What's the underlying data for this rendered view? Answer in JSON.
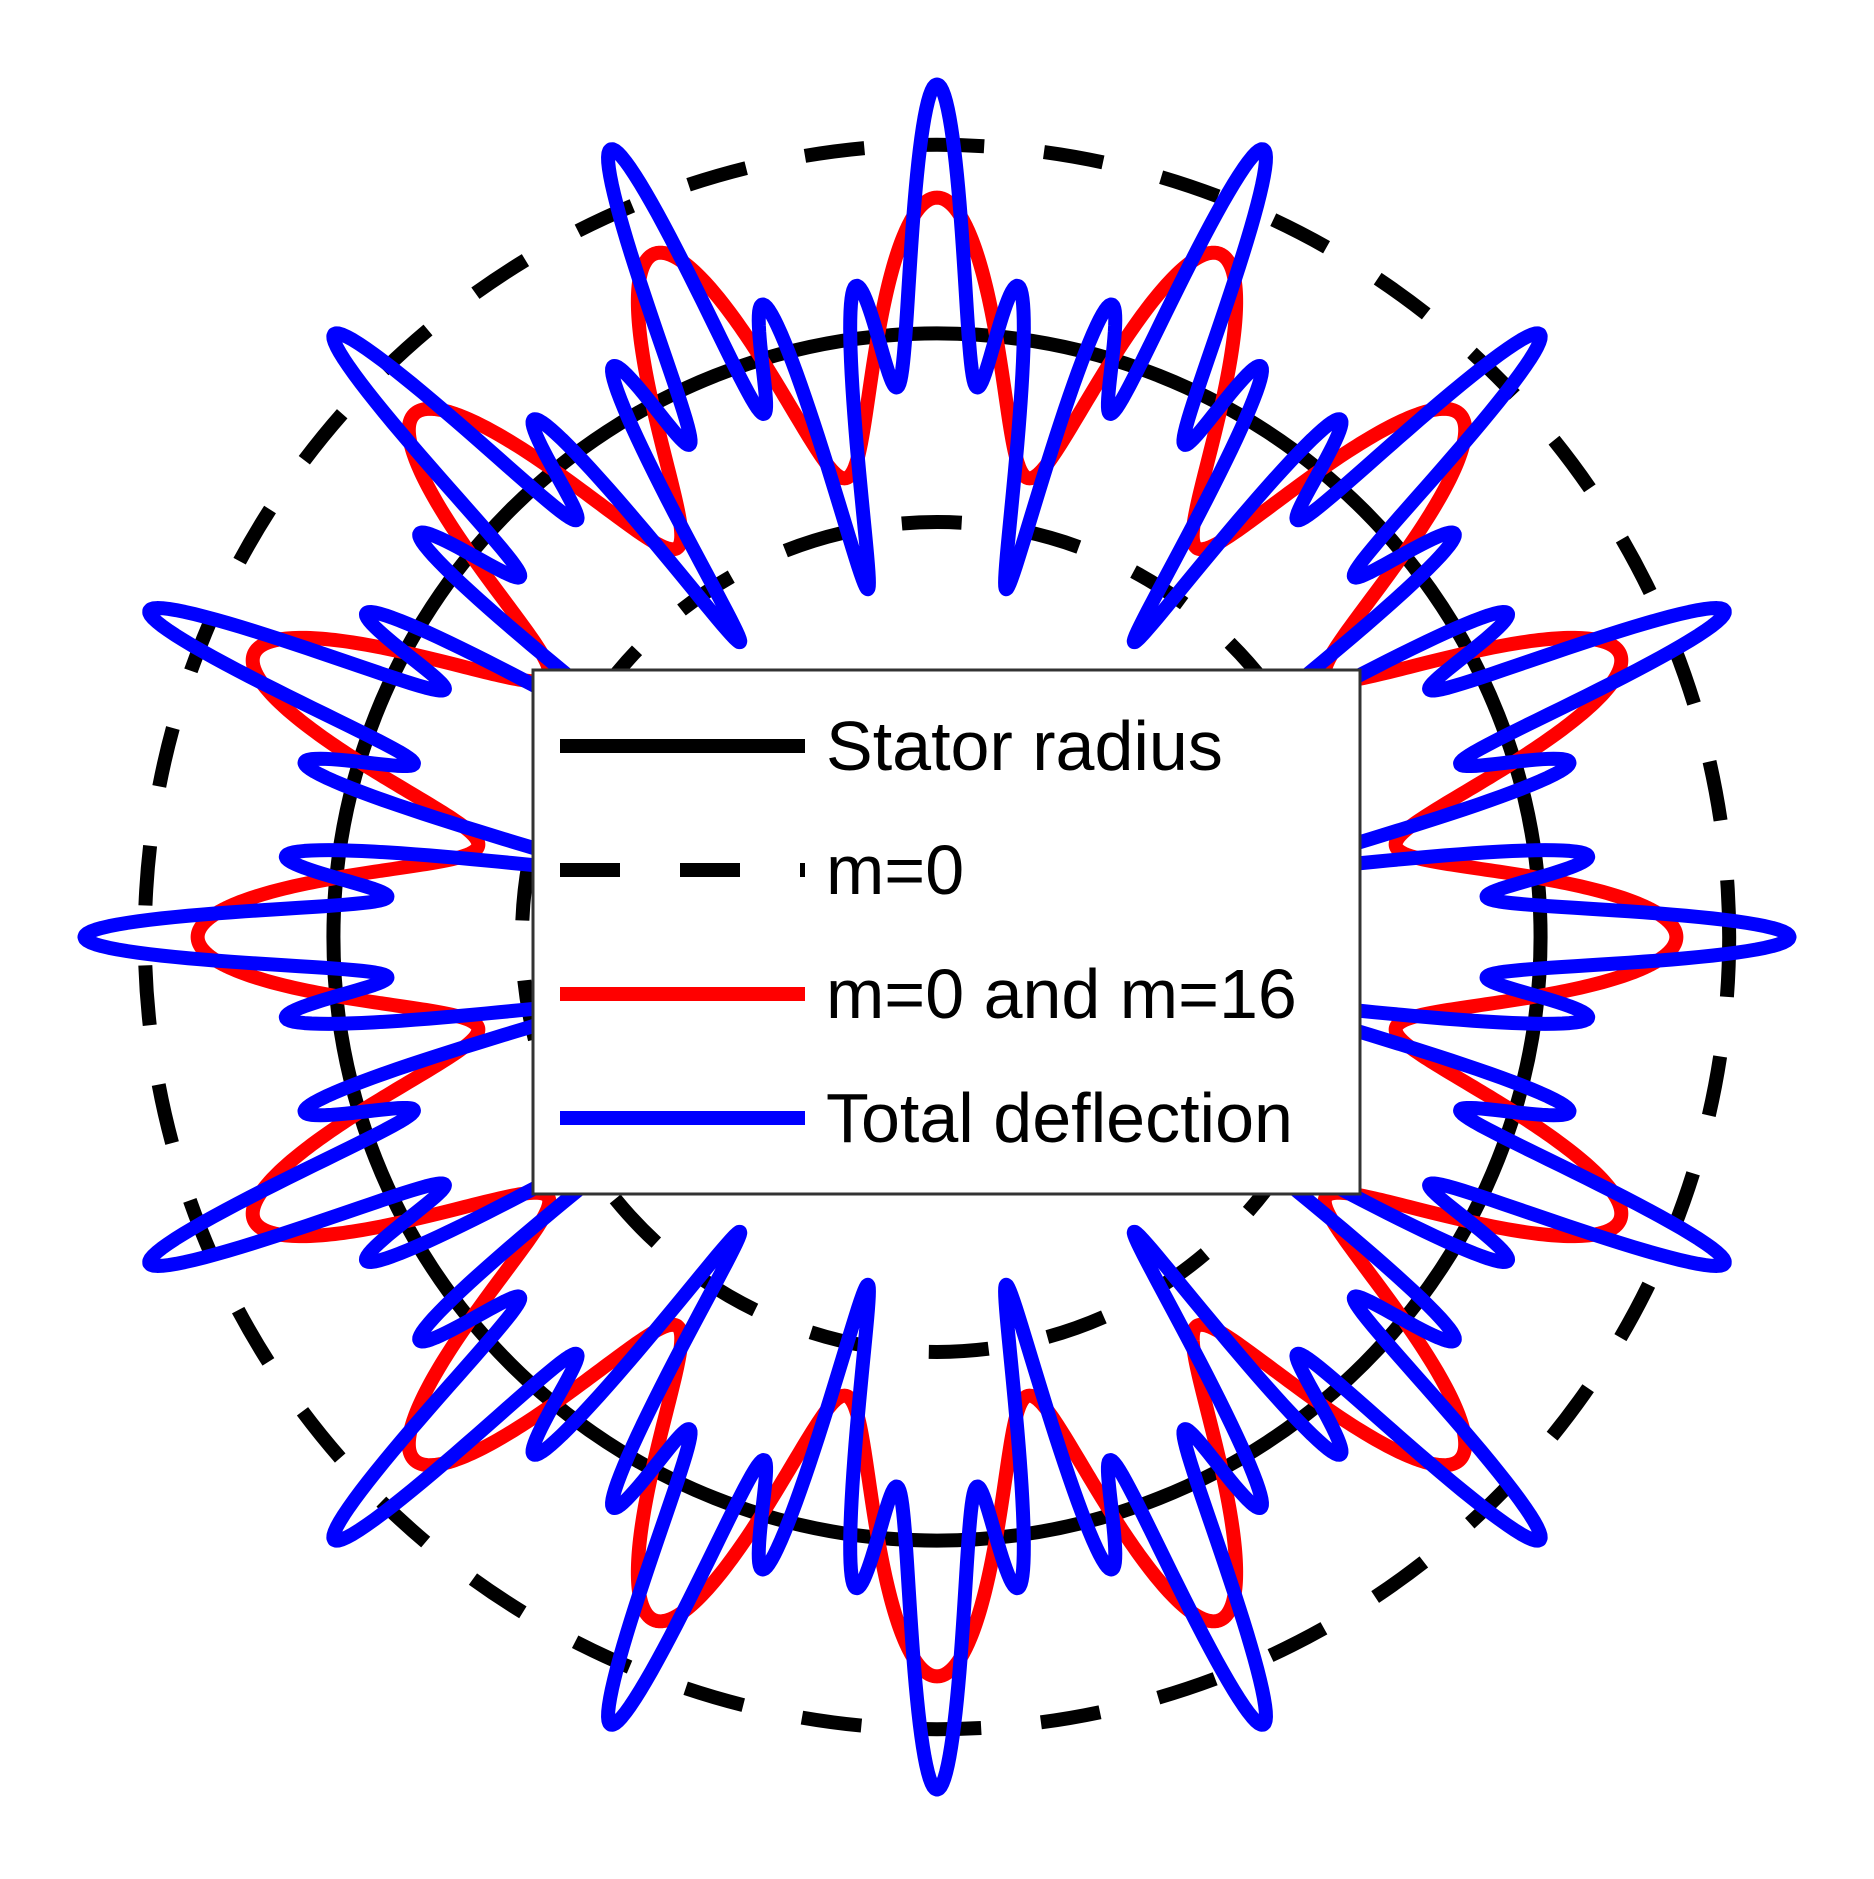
{
  "chart_data": {
    "type": "polar-line",
    "title": "",
    "grid": false,
    "axes": false,
    "legend_placement": "center",
    "radius_range": [
      0,
      1.12
    ],
    "theta_range_deg": [
      0,
      360
    ],
    "series": [
      {
        "name": "Stator radius",
        "color": "#000000",
        "line_style": "solid",
        "radius": 0.8
      },
      {
        "name": "m=0",
        "color": "#000000",
        "line_style": "dashed",
        "radius_levels": [
          0.55,
          1.05
        ]
      },
      {
        "name": "m=0 and m=16",
        "color": "#ff0000",
        "line_style": "solid",
        "mean_radius": 0.8,
        "amplitude": 0.18,
        "harmonic": 16
      },
      {
        "name": "Total deflection",
        "color": "#0000ff",
        "line_style": "solid",
        "mean_radius": 0.8,
        "components": [
          {
            "harmonic": 16,
            "amplitude": 0.18
          },
          {
            "harmonic": 48,
            "amplitude": 0.15
          }
        ]
      }
    ]
  }
}
